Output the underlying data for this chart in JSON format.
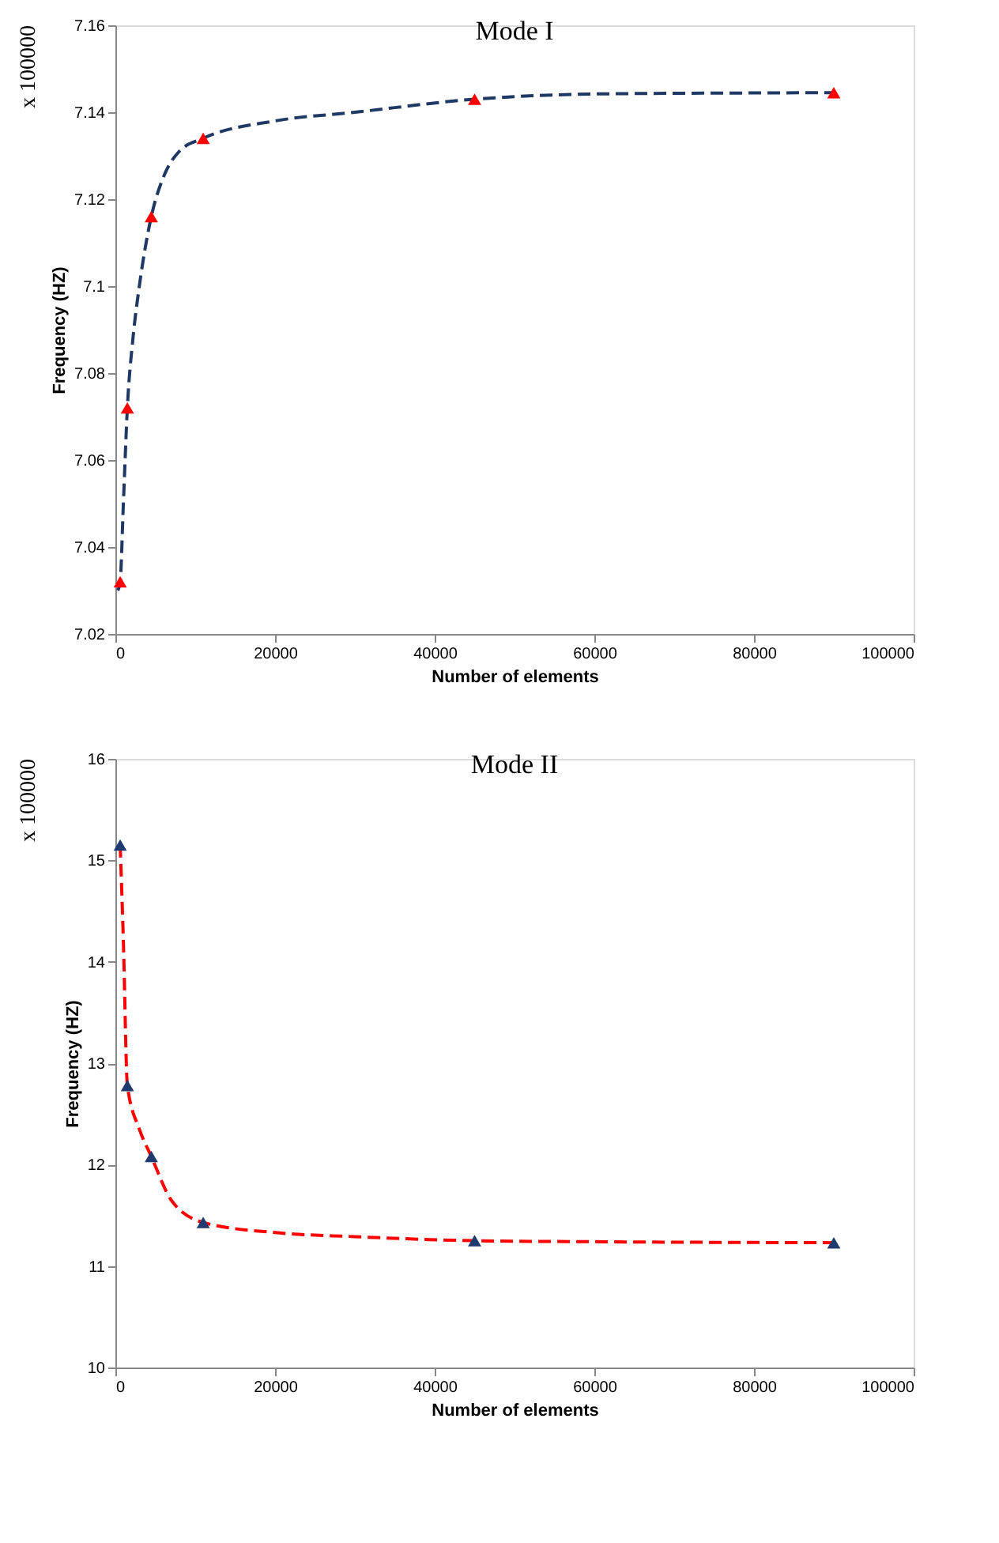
{
  "chart_data": [
    {
      "type": "line",
      "title": "Mode I",
      "xlabel": "Number of elements",
      "ylabel": "Frequency (HZ)",
      "annotations": [
        "x 100000"
      ],
      "xlim": [
        0,
        100000
      ],
      "xticks": [
        0,
        20000,
        40000,
        60000,
        80000,
        100000
      ],
      "ylim": [
        7.02,
        7.16
      ],
      "yticks": [
        7.02,
        7.04,
        7.06,
        7.08,
        7.1,
        7.12,
        7.14,
        7.16
      ],
      "grid": false,
      "series": [
        {
          "color": "#1f3864",
          "line_style": "dashed",
          "marker": "none",
          "x": [
            300,
            600,
            1000,
            1500,
            2200,
            3000,
            4500,
            6000,
            8000,
            11000,
            20000,
            30000,
            45000,
            60000,
            75000,
            90000
          ],
          "values": [
            7.03,
            7.032,
            7.05,
            7.072,
            7.088,
            7.1,
            7.116,
            7.125,
            7.131,
            7.134,
            7.138,
            7.14,
            7.143,
            7.1442,
            7.1444,
            7.1445
          ]
        },
        {
          "type": "scatter",
          "color": "#ff0000",
          "marker": "triangle",
          "x": [
            600,
            1500,
            4500,
            11000,
            45000,
            90000
          ],
          "values": [
            7.032,
            7.072,
            7.116,
            7.134,
            7.143,
            7.1445
          ]
        }
      ]
    },
    {
      "type": "line",
      "title": "Mode II",
      "xlabel": "Number of elements",
      "ylabel": "Frequency (HZ)",
      "annotations": [
        "x 100000"
      ],
      "xlim": [
        0,
        100000
      ],
      "xticks": [
        0,
        20000,
        40000,
        60000,
        80000,
        100000
      ],
      "ylim": [
        10,
        16
      ],
      "yticks": [
        10,
        11,
        12,
        13,
        14,
        15,
        16
      ],
      "grid": false,
      "series": [
        {
          "color": "#ff0000",
          "line_style": "dashed",
          "marker": "none",
          "x": [
            600,
            1000,
            1500,
            3000,
            4500,
            7000,
            11000,
            20000,
            30000,
            45000,
            60000,
            90000
          ],
          "values": [
            15.15,
            14.2,
            12.78,
            12.35,
            12.08,
            11.65,
            11.43,
            11.33,
            11.29,
            11.25,
            11.24,
            11.23
          ]
        },
        {
          "type": "scatter",
          "color": "#1f3a6e",
          "marker": "triangle",
          "x": [
            600,
            1500,
            4500,
            11000,
            45000,
            90000
          ],
          "values": [
            15.15,
            12.78,
            12.08,
            11.43,
            11.25,
            11.23
          ]
        }
      ]
    }
  ]
}
